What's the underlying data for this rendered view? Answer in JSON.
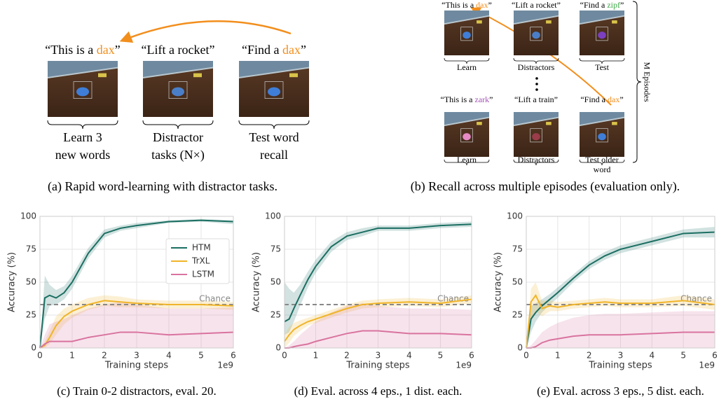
{
  "panel_a": {
    "frames": [
      {
        "quote": [
          {
            "text": "“This is a "
          },
          {
            "text": "dax",
            "color": "#f28e1c"
          },
          {
            "text": "”"
          }
        ],
        "label": [
          "Learn 3",
          "new words"
        ]
      },
      {
        "quote": [
          {
            "text": "“Lift a rocket”"
          }
        ],
        "label": [
          "Distractor",
          "tasks (N×)"
        ]
      },
      {
        "quote": [
          {
            "text": "“Find a "
          },
          {
            "text": "dax",
            "color": "#f28e1c"
          },
          {
            "text": "”"
          }
        ],
        "label": [
          "Test word",
          "recall"
        ]
      }
    ],
    "caption": "(a) Rapid word-learning with distractor tasks."
  },
  "panel_b": {
    "rows": [
      [
        {
          "quote": [
            {
              "text": "“This is a "
            },
            {
              "text": "dax",
              "color": "#f28e1c"
            },
            {
              "text": "”"
            }
          ],
          "label": [
            "Learn"
          ]
        },
        {
          "quote": [
            {
              "text": "“Lift a rocket”"
            }
          ],
          "label": [
            "Distractors"
          ]
        },
        {
          "quote": [
            {
              "text": "“Find a "
            },
            {
              "text": "zipf",
              "color": "#3aa845"
            },
            {
              "text": "”"
            }
          ],
          "label": [
            "Test"
          ]
        }
      ],
      [
        {
          "quote": [
            {
              "text": "“This is a "
            },
            {
              "text": "zark",
              "color": "#a455b8"
            },
            {
              "text": "”"
            }
          ],
          "label": [
            "Learn"
          ]
        },
        {
          "quote": [
            {
              "text": "“Lift a train”"
            }
          ],
          "label": [
            "Distractors"
          ]
        },
        {
          "quote": [
            {
              "text": "“Find a "
            },
            {
              "text": "dax",
              "color": "#f28e1c"
            },
            {
              "text": "”"
            }
          ],
          "label": [
            "Test older",
            "word"
          ]
        }
      ]
    ],
    "side_label": "M Episodes",
    "caption": "(b) Recall across multiple episodes (evaluation only)."
  },
  "chart_data": [
    {
      "type": "line",
      "caption": "(c) Train 0-2 distractors, eval. 20.",
      "xlabel": "Training steps",
      "ylabel": "Accuracy (%)",
      "x_offset": "1e9",
      "x": [
        0,
        0.15,
        0.3,
        0.5,
        0.75,
        1,
        1.5,
        2,
        2.5,
        3,
        4,
        5,
        6
      ],
      "xlim": [
        0,
        6
      ],
      "xticks": [
        0,
        1,
        2,
        3,
        4,
        5,
        6
      ],
      "ylim": [
        0,
        100
      ],
      "yticks": [
        0,
        25,
        50,
        75,
        100
      ],
      "grid": true,
      "legend": "center right",
      "chance": {
        "value": 33,
        "label": "Chance"
      },
      "series": [
        {
          "name": "HTM",
          "color": "#1b6e62",
          "values": [
            0,
            38,
            40,
            38,
            42,
            50,
            72,
            87,
            91,
            93,
            96,
            97,
            96
          ],
          "lower": [
            0,
            22,
            32,
            33,
            37,
            45,
            68,
            84,
            89,
            91,
            95,
            96,
            94
          ],
          "upper": [
            0,
            55,
            48,
            44,
            47,
            55,
            76,
            90,
            93,
            95,
            97,
            98,
            97
          ]
        },
        {
          "name": "TrXL",
          "color": "#f0b429",
          "values": [
            0,
            2,
            8,
            17,
            24,
            28,
            33,
            36,
            35,
            34,
            33,
            33,
            32
          ],
          "lower": [
            0,
            0,
            3,
            10,
            18,
            23,
            29,
            32,
            31,
            31,
            30,
            30,
            29
          ],
          "upper": [
            0,
            5,
            13,
            24,
            30,
            33,
            38,
            40,
            39,
            37,
            36,
            36,
            35
          ]
        },
        {
          "name": "LSTM",
          "color": "#d9739f",
          "values": [
            0,
            3,
            5,
            5,
            5,
            5,
            8,
            10,
            12,
            12,
            10,
            11,
            12
          ],
          "lower": [
            0,
            0,
            0,
            0,
            0,
            0,
            0,
            0,
            0,
            0,
            0,
            0,
            0
          ],
          "upper": [
            0,
            10,
            18,
            20,
            22,
            25,
            30,
            33,
            35,
            33,
            30,
            30,
            31
          ]
        }
      ]
    },
    {
      "type": "line",
      "caption": "(d) Eval. across 4 eps., 1 dist. each.",
      "xlabel": "Training steps",
      "ylabel": "Accuracy (%)",
      "x_offset": "1e9",
      "x": [
        0,
        0.15,
        0.3,
        0.5,
        0.75,
        1,
        1.5,
        2,
        2.5,
        3,
        4,
        5,
        6
      ],
      "xlim": [
        0,
        6
      ],
      "xticks": [
        0,
        1,
        2,
        3,
        4,
        5,
        6
      ],
      "ylim": [
        0,
        100
      ],
      "yticks": [
        0,
        25,
        50,
        75,
        100
      ],
      "grid": true,
      "chance": {
        "value": 33,
        "label": "Chance"
      },
      "series": [
        {
          "color": "#1b6e62",
          "values": [
            20,
            22,
            30,
            40,
            52,
            62,
            77,
            85,
            88,
            91,
            91,
            93,
            94
          ],
          "lower": [
            10,
            12,
            20,
            32,
            46,
            57,
            73,
            82,
            85,
            89,
            89,
            91,
            92
          ],
          "upper": [
            50,
            45,
            42,
            48,
            58,
            67,
            81,
            88,
            91,
            93,
            93,
            95,
            96
          ]
        },
        {
          "color": "#f0b429",
          "values": [
            5,
            10,
            14,
            17,
            20,
            22,
            26,
            30,
            33,
            34,
            35,
            34,
            37
          ],
          "lower": [
            0,
            4,
            9,
            13,
            17,
            19,
            23,
            27,
            30,
            31,
            32,
            31,
            34
          ],
          "upper": [
            10,
            16,
            19,
            21,
            23,
            25,
            29,
            33,
            36,
            37,
            38,
            37,
            40
          ]
        },
        {
          "color": "#d9739f",
          "values": [
            0,
            0,
            1,
            2,
            3,
            5,
            8,
            11,
            13,
            13,
            11,
            11,
            10
          ],
          "lower": [
            0,
            0,
            0,
            0,
            0,
            0,
            0,
            0,
            0,
            0,
            0,
            0,
            0
          ],
          "upper": [
            0,
            2,
            5,
            10,
            15,
            20,
            27,
            32,
            34,
            32,
            30,
            30,
            29
          ]
        }
      ]
    },
    {
      "type": "line",
      "caption": "(e) Eval. across 3 eps., 5 dist. each.",
      "xlabel": "Training steps",
      "ylabel": "Accuracy (%)",
      "x_offset": "1e9",
      "x": [
        0,
        0.15,
        0.3,
        0.5,
        0.75,
        1,
        1.5,
        2,
        2.5,
        3,
        4,
        5,
        6
      ],
      "xlim": [
        0,
        6
      ],
      "xticks": [
        0,
        1,
        2,
        3,
        4,
        5,
        6
      ],
      "ylim": [
        0,
        100
      ],
      "yticks": [
        0,
        25,
        50,
        75,
        100
      ],
      "grid": true,
      "chance": {
        "value": 33,
        "label": "Chance"
      },
      "series": [
        {
          "color": "#1b6e62",
          "values": [
            0,
            22,
            27,
            32,
            37,
            42,
            53,
            63,
            70,
            75,
            81,
            87,
            88
          ],
          "lower": [
            0,
            12,
            20,
            27,
            33,
            38,
            50,
            60,
            67,
            72,
            78,
            84,
            84
          ],
          "upper": [
            0,
            32,
            34,
            37,
            41,
            46,
            56,
            66,
            73,
            78,
            84,
            90,
            92
          ]
        },
        {
          "color": "#f0b429",
          "values": [
            0,
            35,
            40,
            30,
            32,
            31,
            33,
            34,
            35,
            34,
            34,
            36,
            33
          ],
          "lower": [
            0,
            20,
            28,
            24,
            28,
            28,
            30,
            31,
            32,
            31,
            31,
            32,
            29
          ],
          "upper": [
            0,
            45,
            50,
            36,
            36,
            35,
            36,
            37,
            38,
            37,
            37,
            40,
            37
          ]
        },
        {
          "color": "#d9739f",
          "values": [
            0,
            0,
            1,
            4,
            6,
            7,
            9,
            10,
            10,
            10,
            11,
            12,
            12
          ],
          "lower": [
            0,
            0,
            0,
            0,
            0,
            0,
            0,
            0,
            0,
            0,
            0,
            0,
            0
          ],
          "upper": [
            0,
            2,
            6,
            12,
            16,
            19,
            23,
            25,
            26,
            26,
            27,
            28,
            28
          ]
        }
      ]
    }
  ]
}
